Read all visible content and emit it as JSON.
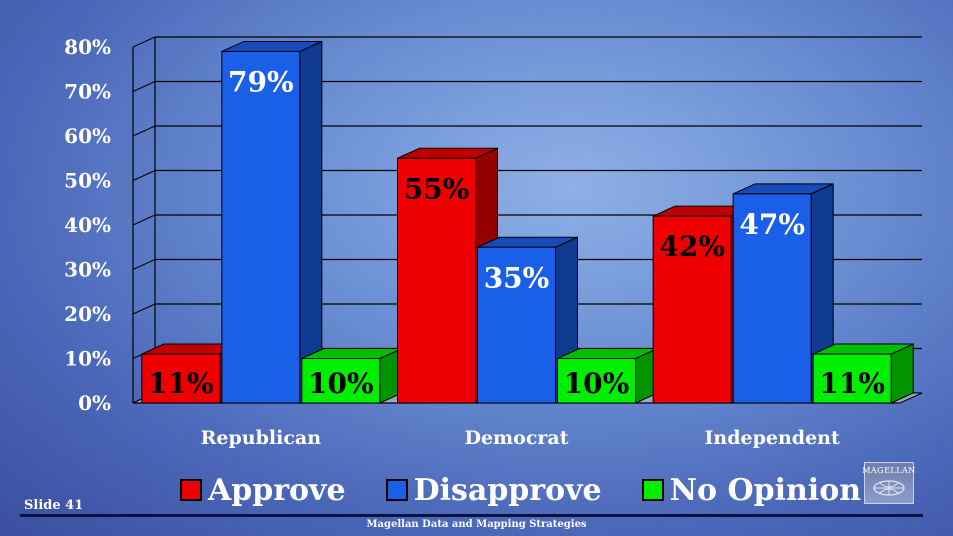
{
  "slide_label": "Slide 41",
  "footer": "Magellan Data and Mapping Strategies",
  "logo_text": "MAGELLAN",
  "chart_data": {
    "type": "bar",
    "categories": [
      "Republican",
      "Democrat",
      "Independent"
    ],
    "series": [
      {
        "name": "Approve",
        "values": [
          11,
          55,
          42
        ],
        "color": "#ee0000",
        "label_color": "#000000"
      },
      {
        "name": "Disapprove",
        "values": [
          79,
          35,
          47
        ],
        "color": "#1a5fe8",
        "label_color": "#ffffff"
      },
      {
        "name": "No Opinion",
        "values": [
          10,
          10,
          11
        ],
        "color": "#00ee00",
        "label_color": "#000000"
      }
    ],
    "yticks": [
      "0%",
      "10%",
      "20%",
      "30%",
      "40%",
      "50%",
      "60%",
      "70%",
      "80%"
    ],
    "ylim": [
      0,
      80
    ],
    "data_labels": [
      [
        "11%",
        "55%",
        "42%"
      ],
      [
        "79%",
        "35%",
        "47%"
      ],
      [
        "10%",
        "10%",
        "11%"
      ]
    ],
    "grid": true,
    "legend_position": "bottom",
    "three_d": true
  }
}
